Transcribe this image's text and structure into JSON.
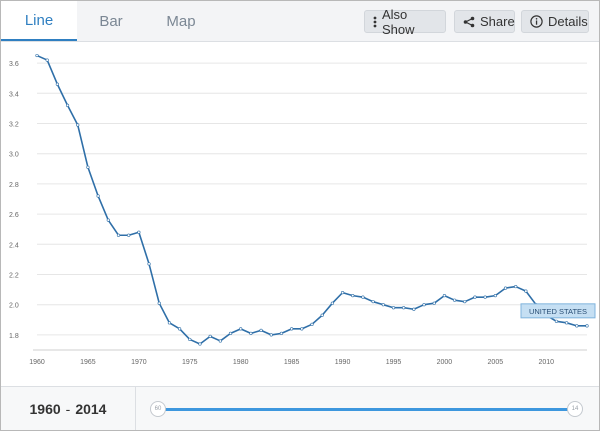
{
  "tabs": [
    {
      "label": "Line",
      "active": true
    },
    {
      "label": "Bar",
      "active": false
    },
    {
      "label": "Map",
      "active": false
    }
  ],
  "toolbar": {
    "also_show_label": "Also Show",
    "share_label": "Share",
    "details_label": "Details"
  },
  "range": {
    "start": "1960",
    "separator": "-",
    "end": "2014",
    "start_handle_text": "60",
    "end_handle_text": "14"
  },
  "colors": {
    "accent": "#2f7fc1",
    "line": "#2f6fa8",
    "slider": "#3d97de",
    "label_bg": "#c5dff3",
    "label_border": "#7fb3dc"
  },
  "chart_data": {
    "type": "line",
    "title": "",
    "xlabel": "",
    "ylabel": "",
    "xlim": [
      1960,
      2014
    ],
    "ylim": [
      1.7,
      3.7
    ],
    "x_ticks": [
      1960,
      1965,
      1970,
      1975,
      1980,
      1985,
      1990,
      1995,
      2000,
      2005,
      2010
    ],
    "y_ticks": [
      "1.8",
      "2.0",
      "2.2",
      "2.4",
      "2.6",
      "2.8",
      "3.0",
      "3.2",
      "3.4",
      "3.6"
    ],
    "grid": "horizontal",
    "series": [
      {
        "name": "UNITED STATES",
        "x": [
          1960,
          1961,
          1962,
          1963,
          1964,
          1965,
          1966,
          1967,
          1968,
          1969,
          1970,
          1971,
          1972,
          1973,
          1974,
          1975,
          1976,
          1977,
          1978,
          1979,
          1980,
          1981,
          1982,
          1983,
          1984,
          1985,
          1986,
          1987,
          1988,
          1989,
          1990,
          1991,
          1992,
          1993,
          1994,
          1995,
          1996,
          1997,
          1998,
          1999,
          2000,
          2001,
          2002,
          2003,
          2004,
          2005,
          2006,
          2007,
          2008,
          2009,
          2010,
          2011,
          2012,
          2013,
          2014
        ],
        "y": [
          3.65,
          3.62,
          3.46,
          3.32,
          3.19,
          2.91,
          2.72,
          2.56,
          2.46,
          2.46,
          2.48,
          2.27,
          2.01,
          1.88,
          1.84,
          1.77,
          1.74,
          1.79,
          1.76,
          1.81,
          1.84,
          1.81,
          1.83,
          1.8,
          1.81,
          1.84,
          1.84,
          1.87,
          1.93,
          2.01,
          2.08,
          2.06,
          2.05,
          2.02,
          2.0,
          1.98,
          1.98,
          1.97,
          2.0,
          2.01,
          2.06,
          2.03,
          2.02,
          2.05,
          2.05,
          2.06,
          2.11,
          2.12,
          2.09,
          2.0,
          1.93,
          1.89,
          1.88,
          1.86,
          1.86
        ]
      }
    ]
  }
}
